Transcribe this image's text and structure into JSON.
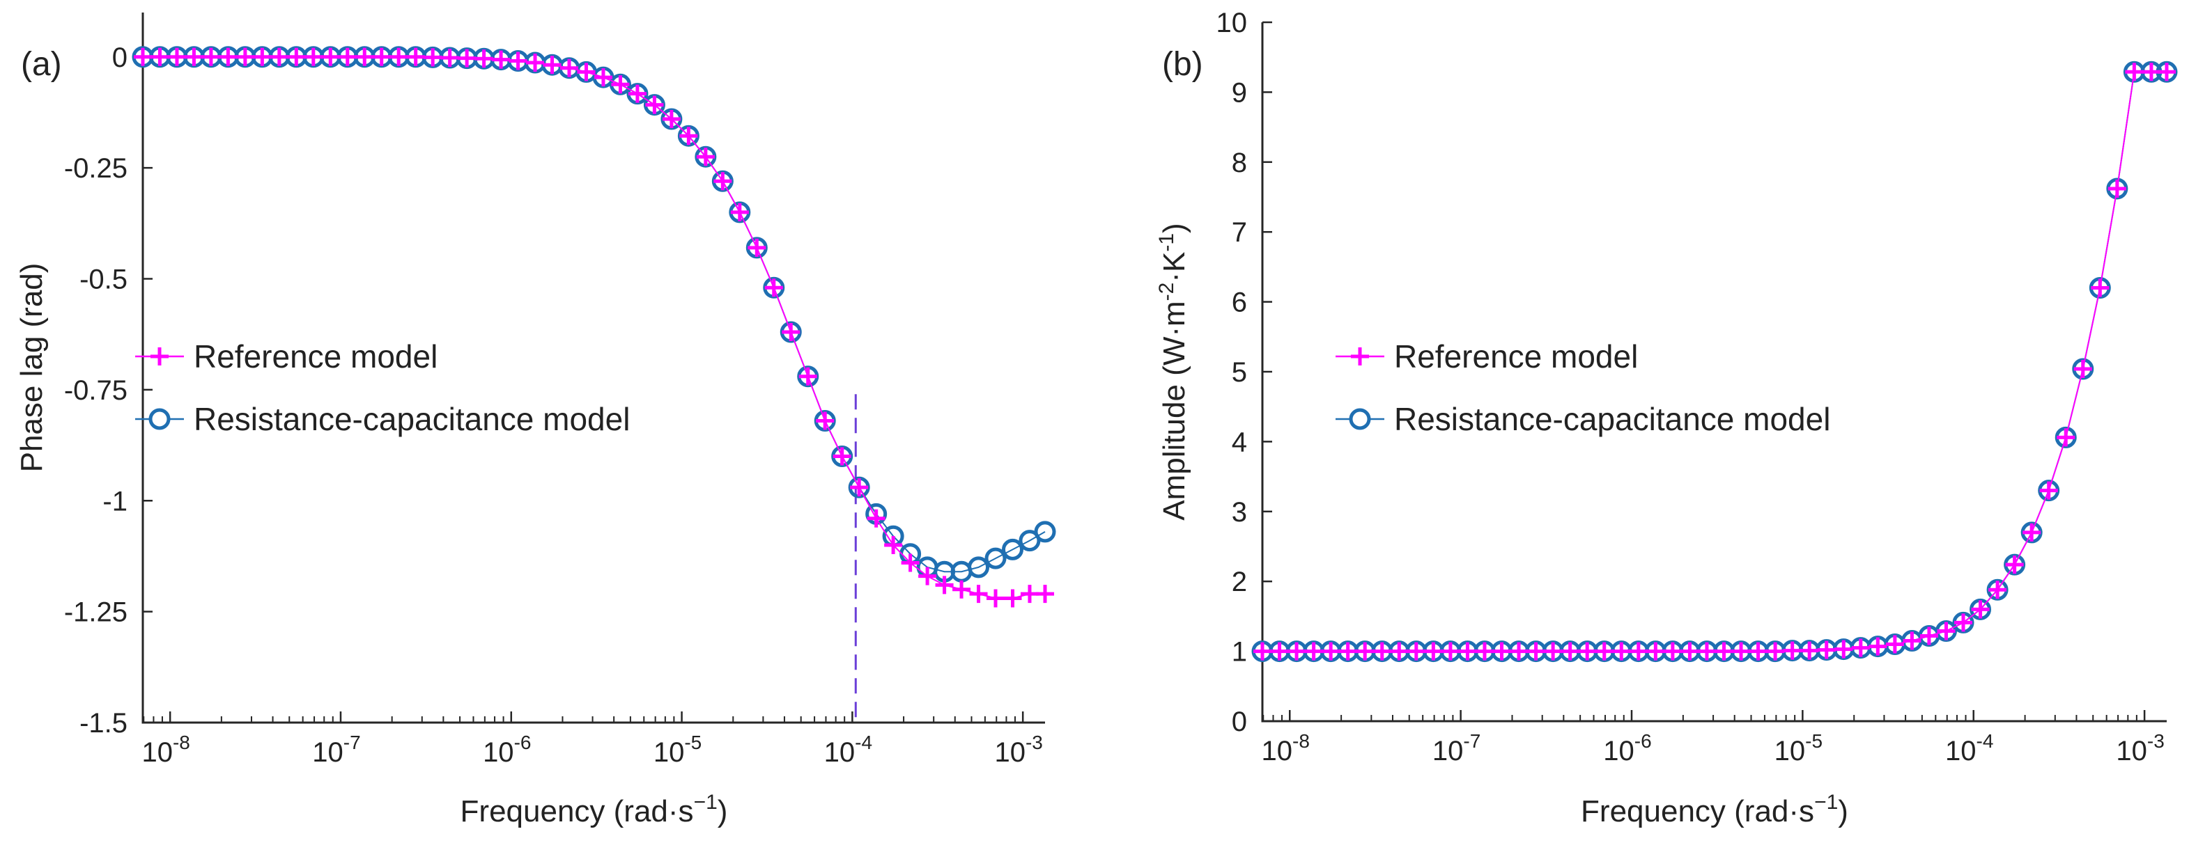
{
  "colors": {
    "reference": "#ff00ff",
    "rc": "#1f6fb2",
    "axis": "#262626",
    "marker_line": "#6b3fd8"
  },
  "chart_data": [
    {
      "type": "line",
      "panel_label": "(a)",
      "xlabel": {
        "text": "Frequency (rad·s",
        "sup": "−1",
        "close": ")"
      },
      "ylabel": "Phase lag (rad)",
      "xscale": "log",
      "xlim_log10": [
        -8.16,
        -2.87
      ],
      "ylim": [
        -1.5,
        0.1
      ],
      "yticks": [
        {
          "value": 0,
          "label": "0"
        },
        {
          "value": -0.25,
          "label": "-0.25"
        },
        {
          "value": -0.5,
          "label": "-0.5"
        },
        {
          "value": -0.75,
          "label": "-0.75"
        },
        {
          "value": -1,
          "label": "-1"
        },
        {
          "value": -1.25,
          "label": "-1.25"
        },
        {
          "value": -1.5,
          "label": "-1.5"
        }
      ],
      "xticks": [
        {
          "log10": -8,
          "base": "10",
          "exp": "-8"
        },
        {
          "log10": -7,
          "base": "10",
          "exp": "-7"
        },
        {
          "log10": -6,
          "base": "10",
          "exp": "-6"
        },
        {
          "log10": -5,
          "base": "10",
          "exp": "-5"
        },
        {
          "log10": -4,
          "base": "10",
          "exp": "-4"
        },
        {
          "log10": -3,
          "base": "10",
          "exp": "-3"
        }
      ],
      "legend": {
        "position": "center-left",
        "entries": [
          "Reference model",
          "Resistance-capacitance model"
        ]
      },
      "vertical_marker": {
        "log10_x": -3.98,
        "y_top": -0.76,
        "style": "dashed"
      },
      "series": [
        {
          "name": "Reference model",
          "marker": "plus",
          "log10_x": [
            -8.16,
            -8.06,
            -7.96,
            -7.86,
            -7.76,
            -7.66,
            -7.56,
            -7.46,
            -7.36,
            -7.26,
            -7.16,
            -7.06,
            -6.96,
            -6.86,
            -6.76,
            -6.66,
            -6.56,
            -6.46,
            -6.36,
            -6.26,
            -6.16,
            -6.06,
            -5.96,
            -5.86,
            -5.76,
            -5.66,
            -5.56,
            -5.46,
            -5.36,
            -5.26,
            -5.16,
            -5.06,
            -4.96,
            -4.86,
            -4.76,
            -4.66,
            -4.56,
            -4.46,
            -4.36,
            -4.26,
            -4.16,
            -4.06,
            -3.96,
            -3.86,
            -3.76,
            -3.66,
            -3.56,
            -3.46,
            -3.36,
            -3.26,
            -3.16,
            -3.06,
            -2.96,
            -2.87
          ],
          "y": [
            0,
            0,
            0,
            0,
            0,
            0,
            0,
            0,
            0,
            0,
            0,
            0,
            0,
            0,
            0,
            0,
            0,
            -0.001,
            -0.002,
            -0.003,
            -0.004,
            -0.006,
            -0.009,
            -0.013,
            -0.018,
            -0.025,
            -0.034,
            -0.046,
            -0.062,
            -0.083,
            -0.108,
            -0.14,
            -0.178,
            -0.225,
            -0.28,
            -0.35,
            -0.43,
            -0.52,
            -0.62,
            -0.72,
            -0.82,
            -0.9,
            -0.97,
            -1.04,
            -1.1,
            -1.14,
            -1.17,
            -1.19,
            -1.2,
            -1.21,
            -1.22,
            -1.22,
            -1.21,
            -1.21
          ]
        },
        {
          "name": "Resistance-capacitance model",
          "marker": "circle",
          "log10_x": [
            -8.16,
            -8.06,
            -7.96,
            -7.86,
            -7.76,
            -7.66,
            -7.56,
            -7.46,
            -7.36,
            -7.26,
            -7.16,
            -7.06,
            -6.96,
            -6.86,
            -6.76,
            -6.66,
            -6.56,
            -6.46,
            -6.36,
            -6.26,
            -6.16,
            -6.06,
            -5.96,
            -5.86,
            -5.76,
            -5.66,
            -5.56,
            -5.46,
            -5.36,
            -5.26,
            -5.16,
            -5.06,
            -4.96,
            -4.86,
            -4.76,
            -4.66,
            -4.56,
            -4.46,
            -4.36,
            -4.26,
            -4.16,
            -4.06,
            -3.96,
            -3.86,
            -3.76,
            -3.66,
            -3.56,
            -3.46,
            -3.36,
            -3.26,
            -3.16,
            -3.06,
            -2.96,
            -2.87
          ],
          "y": [
            0,
            0,
            0,
            0,
            0,
            0,
            0,
            0,
            0,
            0,
            0,
            0,
            0,
            0,
            0,
            0,
            0,
            -0.001,
            -0.002,
            -0.003,
            -0.004,
            -0.006,
            -0.009,
            -0.013,
            -0.018,
            -0.025,
            -0.034,
            -0.046,
            -0.062,
            -0.083,
            -0.108,
            -0.14,
            -0.178,
            -0.225,
            -0.28,
            -0.35,
            -0.43,
            -0.52,
            -0.62,
            -0.72,
            -0.82,
            -0.9,
            -0.97,
            -1.03,
            -1.08,
            -1.12,
            -1.15,
            -1.16,
            -1.16,
            -1.15,
            -1.13,
            -1.11,
            -1.09,
            -1.07
          ]
        }
      ]
    },
    {
      "type": "line",
      "panel_label": "(b)",
      "xlabel": {
        "text": "Frequency (rad·s",
        "sup": "−1",
        "close": ")"
      },
      "ylabel": {
        "text": "Amplitude (W·m",
        "sup1": "-2",
        "mid": "·K",
        "sup2": "-1",
        "close": ")"
      },
      "xscale": "log",
      "xlim_log10": [
        -8.16,
        -2.87
      ],
      "ylim": [
        0,
        10
      ],
      "yticks": [
        {
          "value": 0,
          "label": "0"
        },
        {
          "value": 1,
          "label": "1"
        },
        {
          "value": 2,
          "label": "2"
        },
        {
          "value": 3,
          "label": "3"
        },
        {
          "value": 4,
          "label": "4"
        },
        {
          "value": 5,
          "label": "5"
        },
        {
          "value": 6,
          "label": "6"
        },
        {
          "value": 7,
          "label": "7"
        },
        {
          "value": 8,
          "label": "8"
        },
        {
          "value": 9,
          "label": "9"
        },
        {
          "value": 10,
          "label": "10"
        }
      ],
      "xticks": [
        {
          "log10": -8,
          "base": "10",
          "exp": "-8"
        },
        {
          "log10": -7,
          "base": "10",
          "exp": "-7"
        },
        {
          "log10": -6,
          "base": "10",
          "exp": "-6"
        },
        {
          "log10": -5,
          "base": "10",
          "exp": "-5"
        },
        {
          "log10": -4,
          "base": "10",
          "exp": "-4"
        },
        {
          "log10": -3,
          "base": "10",
          "exp": "-3"
        }
      ],
      "legend": {
        "position": "center-left",
        "entries": [
          "Reference model",
          "Resistance-capacitance model"
        ]
      },
      "series": [
        {
          "name": "Reference model",
          "marker": "plus",
          "log10_x": [
            -8.16,
            -8.06,
            -7.96,
            -7.86,
            -7.76,
            -7.66,
            -7.56,
            -7.46,
            -7.36,
            -7.26,
            -7.16,
            -7.06,
            -6.96,
            -6.86,
            -6.76,
            -6.66,
            -6.56,
            -6.46,
            -6.36,
            -6.26,
            -6.16,
            -6.06,
            -5.96,
            -5.86,
            -5.76,
            -5.66,
            -5.56,
            -5.46,
            -5.36,
            -5.26,
            -5.16,
            -5.06,
            -4.96,
            -4.86,
            -4.76,
            -4.66,
            -4.56,
            -4.46,
            -4.36,
            -4.26,
            -4.16,
            -4.06,
            -3.96,
            -3.86,
            -3.76,
            -3.66,
            -3.56,
            -3.46,
            -3.36,
            -3.26,
            -3.16,
            -3.06,
            -2.96,
            -2.87
          ],
          "y": [
            1,
            1,
            1,
            1,
            1,
            1,
            1,
            1,
            1,
            1,
            1,
            1,
            1,
            1,
            1,
            1,
            1,
            1,
            1,
            1,
            1,
            1,
            1,
            1,
            1,
            1,
            1,
            1,
            1,
            1,
            1,
            1.01,
            1.01,
            1.02,
            1.03,
            1.05,
            1.07,
            1.1,
            1.15,
            1.22,
            1.29,
            1.41,
            1.6,
            1.88,
            2.24,
            2.7,
            3.3,
            4.06,
            5.04,
            6.2,
            7.62,
            9.29,
            9.29,
            9.29
          ]
        },
        {
          "name": "Resistance-capacitance model",
          "marker": "circle",
          "log10_x": [
            -8.16,
            -8.06,
            -7.96,
            -7.86,
            -7.76,
            -7.66,
            -7.56,
            -7.46,
            -7.36,
            -7.26,
            -7.16,
            -7.06,
            -6.96,
            -6.86,
            -6.76,
            -6.66,
            -6.56,
            -6.46,
            -6.36,
            -6.26,
            -6.16,
            -6.06,
            -5.96,
            -5.86,
            -5.76,
            -5.66,
            -5.56,
            -5.46,
            -5.36,
            -5.26,
            -5.16,
            -5.06,
            -4.96,
            -4.86,
            -4.76,
            -4.66,
            -4.56,
            -4.46,
            -4.36,
            -4.26,
            -4.16,
            -4.06,
            -3.96,
            -3.86,
            -3.76,
            -3.66,
            -3.56,
            -3.46,
            -3.36,
            -3.26,
            -3.16,
            -3.06,
            -2.96,
            -2.87
          ],
          "y": [
            1,
            1,
            1,
            1,
            1,
            1,
            1,
            1,
            1,
            1,
            1,
            1,
            1,
            1,
            1,
            1,
            1,
            1,
            1,
            1,
            1,
            1,
            1,
            1,
            1,
            1,
            1,
            1,
            1,
            1,
            1,
            1.01,
            1.01,
            1.02,
            1.03,
            1.05,
            1.07,
            1.1,
            1.15,
            1.22,
            1.29,
            1.41,
            1.6,
            1.88,
            2.24,
            2.7,
            3.3,
            4.06,
            5.04,
            6.2,
            7.62,
            9.29,
            9.29,
            9.29
          ]
        }
      ]
    }
  ]
}
